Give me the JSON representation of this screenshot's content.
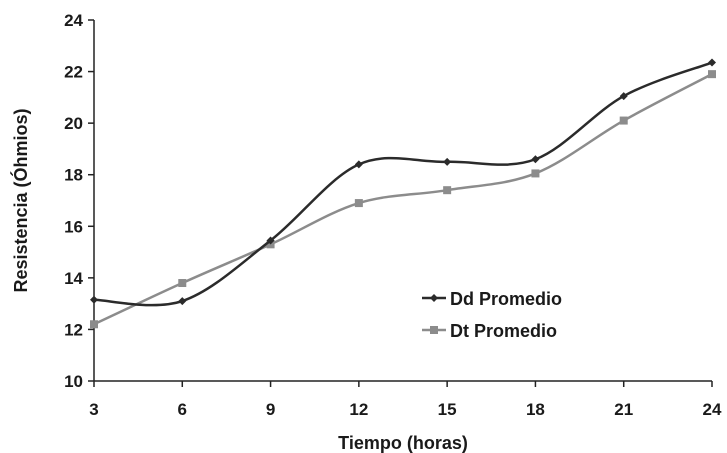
{
  "chart_data": {
    "type": "line",
    "title": "",
    "xlabel": "Tiempo (horas)",
    "ylabel": "Resistencia (Óhmios)",
    "x": [
      3,
      6,
      9,
      12,
      15,
      18,
      21,
      24
    ],
    "xlim": [
      3,
      24
    ],
    "ylim": [
      10,
      24
    ],
    "yticks": [
      10,
      12,
      14,
      16,
      18,
      20,
      22,
      24
    ],
    "smooth": true,
    "grid": false,
    "legend_position": "center-right",
    "series": [
      {
        "name": "Dd Promedio",
        "values": [
          13.15,
          13.1,
          15.45,
          18.4,
          18.5,
          18.6,
          21.05,
          22.35
        ],
        "color": "#2b2b2b",
        "marker": "diamond"
      },
      {
        "name": "Dt Promedio",
        "values": [
          12.2,
          13.8,
          15.3,
          16.9,
          17.4,
          18.05,
          20.1,
          21.9
        ],
        "color": "#8c8c8c",
        "marker": "square"
      }
    ]
  }
}
